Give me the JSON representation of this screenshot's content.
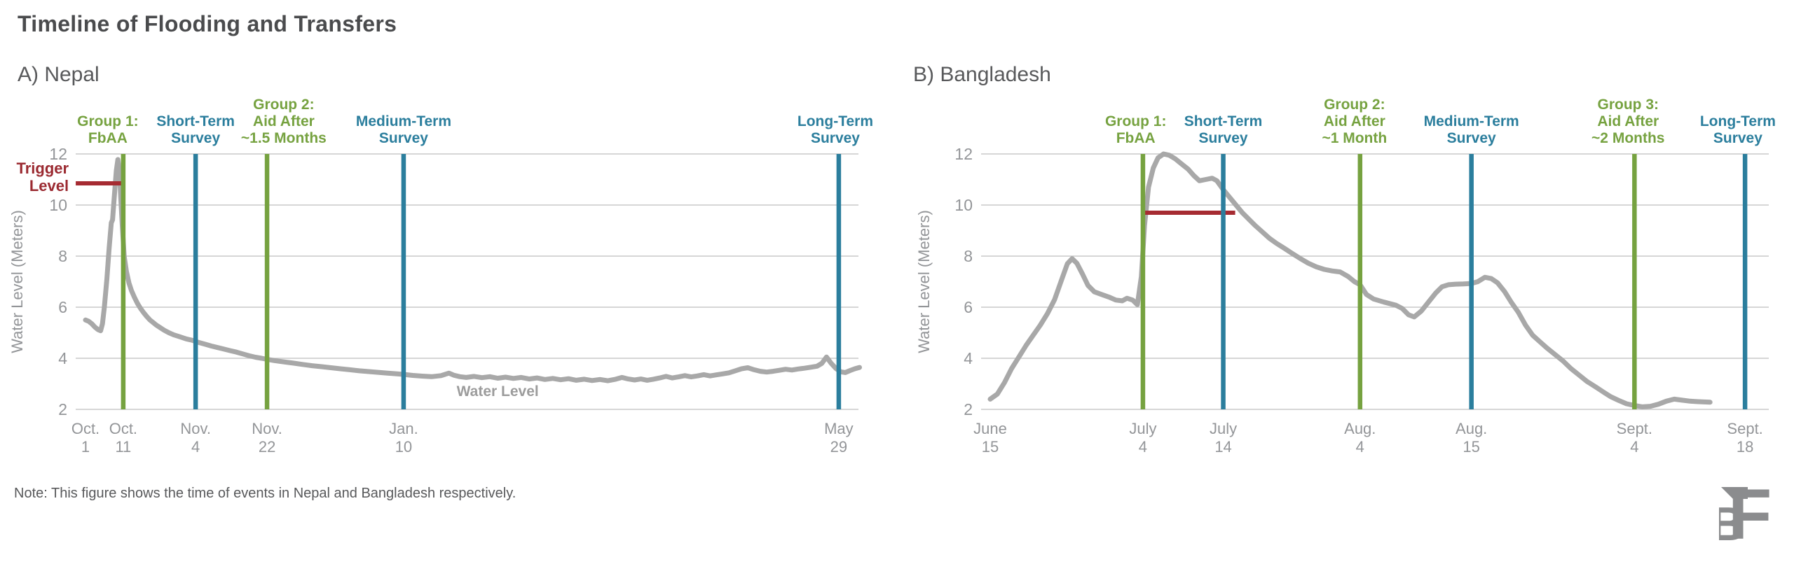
{
  "page": {
    "title": "Timeline of Flooding and Transfers",
    "note": "Note: This figure shows the time of events in Nepal and Bangladesh respectively.",
    "logo_text": "BF"
  },
  "colors": {
    "green": "#76a240",
    "teal": "#2b7e9d",
    "red": "#a62b32",
    "red_text": "#9b2a31",
    "water": "#a8a8a8",
    "grid": "#c9c9c9",
    "tick_text": "#939598",
    "title_text": "#4a4b4d",
    "panel_text": "#58595b",
    "water_label": "#9c9c9c",
    "logo": "#8b8c8e"
  },
  "chart_data": [
    {
      "type": "line",
      "title": "A) Nepal",
      "ylabel": "Water Level (Meters)",
      "ylim": [
        2,
        12
      ],
      "yticks": [
        2,
        4,
        6,
        8,
        10,
        12
      ],
      "grid": true,
      "x_unit": "days since Oct. 1",
      "xlim": [
        -3.1,
        245.7
      ],
      "xticks": [
        {
          "day": 0,
          "lines": [
            "Oct.",
            "1"
          ]
        },
        {
          "day": 12,
          "lines": [
            "Oct.",
            "11"
          ]
        },
        {
          "day": 35,
          "lines": [
            "Nov.",
            "4"
          ]
        },
        {
          "day": 57.7,
          "lines": [
            "Nov.",
            "22"
          ]
        },
        {
          "day": 101.1,
          "lines": [
            "Jan.",
            "10"
          ]
        },
        {
          "day": 239.4,
          "lines": [
            "May",
            "29"
          ]
        }
      ],
      "events": [
        {
          "day": 12,
          "center_day": 7.1,
          "color": "green",
          "lines": [
            "Group 1:",
            "FbAA"
          ]
        },
        {
          "day": 35,
          "center_day": 35,
          "color": "teal",
          "lines": [
            "Short-Term",
            "Survey"
          ]
        },
        {
          "day": 57.7,
          "center_day": 63,
          "color": "green",
          "lines": [
            "Group 2:",
            "Aid After",
            "~1.5 Months"
          ]
        },
        {
          "day": 101.1,
          "center_day": 101.1,
          "color": "teal",
          "lines": [
            "Medium-Term",
            "Survey"
          ]
        },
        {
          "day": 239.4,
          "center_day": 238.3,
          "color": "teal",
          "lines": [
            "Long-Term",
            "Survey"
          ]
        }
      ],
      "trigger": {
        "value": 10.85,
        "from_day": -3.1,
        "to_day": 12,
        "label_lines": [
          "Trigger",
          "Level"
        ]
      },
      "series_label": {
        "text": "Water Level",
        "day": 131,
        "value": 2.52
      },
      "water": [
        [
          0,
          5.5
        ],
        [
          1,
          5.45
        ],
        [
          2,
          5.35
        ],
        [
          3,
          5.22
        ],
        [
          4,
          5.12
        ],
        [
          4.8,
          5.08
        ],
        [
          5.4,
          5.35
        ],
        [
          6,
          6.0
        ],
        [
          6.8,
          7.1
        ],
        [
          7.5,
          8.3
        ],
        [
          8.2,
          9.3
        ],
        [
          8.6,
          9.42
        ],
        [
          9.2,
          10.4
        ],
        [
          9.8,
          11.35
        ],
        [
          10.3,
          11.78
        ],
        [
          10.8,
          11.3
        ],
        [
          11.2,
          10.3
        ],
        [
          11.7,
          9.2
        ],
        [
          12.3,
          8.0
        ],
        [
          13,
          7.4
        ],
        [
          13.8,
          6.95
        ],
        [
          14.6,
          6.65
        ],
        [
          15.5,
          6.4
        ],
        [
          16.5,
          6.15
        ],
        [
          17.5,
          5.95
        ],
        [
          18.5,
          5.78
        ],
        [
          19.5,
          5.63
        ],
        [
          20.5,
          5.5
        ],
        [
          21.5,
          5.4
        ],
        [
          22.5,
          5.3
        ],
        [
          23.5,
          5.22
        ],
        [
          25,
          5.1
        ],
        [
          26.5,
          5.0
        ],
        [
          28,
          4.92
        ],
        [
          30,
          4.84
        ],
        [
          32,
          4.76
        ],
        [
          34,
          4.7
        ],
        [
          36,
          4.62
        ],
        [
          38,
          4.55
        ],
        [
          40,
          4.48
        ],
        [
          42,
          4.42
        ],
        [
          44,
          4.36
        ],
        [
          46,
          4.3
        ],
        [
          48,
          4.24
        ],
        [
          50,
          4.17
        ],
        [
          52,
          4.1
        ],
        [
          54,
          4.04
        ],
        [
          56,
          4.0
        ],
        [
          57.7,
          3.96
        ],
        [
          60,
          3.91
        ],
        [
          63,
          3.86
        ],
        [
          66,
          3.81
        ],
        [
          69,
          3.76
        ],
        [
          72,
          3.71
        ],
        [
          75,
          3.67
        ],
        [
          78,
          3.63
        ],
        [
          81,
          3.59
        ],
        [
          84,
          3.55
        ],
        [
          87,
          3.51
        ],
        [
          90,
          3.48
        ],
        [
          93,
          3.45
        ],
        [
          96,
          3.42
        ],
        [
          99,
          3.39
        ],
        [
          101,
          3.37
        ],
        [
          104,
          3.33
        ],
        [
          107,
          3.3
        ],
        [
          110,
          3.28
        ],
        [
          113,
          3.32
        ],
        [
          115.5,
          3.42
        ],
        [
          117,
          3.34
        ],
        [
          119,
          3.28
        ],
        [
          121,
          3.25
        ],
        [
          123.5,
          3.29
        ],
        [
          126,
          3.24
        ],
        [
          128.5,
          3.28
        ],
        [
          131,
          3.22
        ],
        [
          133.5,
          3.26
        ],
        [
          136,
          3.21
        ],
        [
          138.5,
          3.25
        ],
        [
          141,
          3.19
        ],
        [
          143.5,
          3.23
        ],
        [
          146,
          3.17
        ],
        [
          148.5,
          3.21
        ],
        [
          151,
          3.16
        ],
        [
          153.5,
          3.2
        ],
        [
          156,
          3.14
        ],
        [
          158.5,
          3.18
        ],
        [
          161,
          3.13
        ],
        [
          163.5,
          3.17
        ],
        [
          166,
          3.12
        ],
        [
          168.5,
          3.18
        ],
        [
          170.5,
          3.25
        ],
        [
          172.5,
          3.19
        ],
        [
          174.5,
          3.15
        ],
        [
          176.5,
          3.19
        ],
        [
          178.5,
          3.14
        ],
        [
          180.5,
          3.18
        ],
        [
          182.5,
          3.23
        ],
        [
          184.5,
          3.29
        ],
        [
          186.5,
          3.23
        ],
        [
          188.5,
          3.27
        ],
        [
          190.5,
          3.32
        ],
        [
          192.5,
          3.27
        ],
        [
          194.5,
          3.31
        ],
        [
          196.5,
          3.36
        ],
        [
          198.5,
          3.31
        ],
        [
          200.5,
          3.35
        ],
        [
          202.5,
          3.39
        ],
        [
          204.5,
          3.43
        ],
        [
          206.5,
          3.51
        ],
        [
          208.5,
          3.59
        ],
        [
          210.5,
          3.63
        ],
        [
          212.5,
          3.55
        ],
        [
          214.5,
          3.49
        ],
        [
          216.5,
          3.46
        ],
        [
          218.5,
          3.49
        ],
        [
          220.5,
          3.53
        ],
        [
          222.5,
          3.57
        ],
        [
          224.5,
          3.54
        ],
        [
          226.5,
          3.58
        ],
        [
          228.5,
          3.61
        ],
        [
          230.5,
          3.65
        ],
        [
          232.5,
          3.69
        ],
        [
          234,
          3.8
        ],
        [
          235.5,
          4.05
        ],
        [
          237,
          3.8
        ],
        [
          238.5,
          3.6
        ],
        [
          240,
          3.47
        ],
        [
          241.5,
          3.44
        ],
        [
          243,
          3.52
        ],
        [
          244.5,
          3.59
        ],
        [
          246,
          3.64
        ]
      ]
    },
    {
      "type": "line",
      "title": "B) Bangladesh",
      "ylabel": "Water Level (Meters)",
      "ylim": [
        2,
        12
      ],
      "yticks": [
        2,
        4,
        6,
        8,
        10,
        12
      ],
      "grid": true,
      "x_unit": "days since June 15",
      "xlim": [
        -1.1,
        97.9
      ],
      "xticks": [
        {
          "day": 0,
          "lines": [
            "June",
            "15"
          ]
        },
        {
          "day": 19.2,
          "lines": [
            "July",
            "4"
          ]
        },
        {
          "day": 29.3,
          "lines": [
            "July",
            "14"
          ]
        },
        {
          "day": 46.5,
          "lines": [
            "Aug.",
            "4"
          ]
        },
        {
          "day": 60.5,
          "lines": [
            "Aug.",
            "15"
          ]
        },
        {
          "day": 81,
          "lines": [
            "Sept.",
            "4"
          ]
        },
        {
          "day": 94.9,
          "lines": [
            "Sept.",
            "18"
          ]
        }
      ],
      "events": [
        {
          "day": 19.2,
          "center_day": 18.3,
          "color": "green",
          "lines": [
            "Group 1:",
            "FbAA"
          ]
        },
        {
          "day": 29.3,
          "center_day": 29.3,
          "color": "teal",
          "lines": [
            "Short-Term",
            "Survey"
          ]
        },
        {
          "day": 46.5,
          "center_day": 45.8,
          "color": "green",
          "lines": [
            "Group 2:",
            "Aid After",
            "~1 Month"
          ]
        },
        {
          "day": 60.5,
          "center_day": 60.5,
          "color": "teal",
          "lines": [
            "Medium-Term",
            "Survey"
          ]
        },
        {
          "day": 81,
          "center_day": 80.2,
          "color": "green",
          "lines": [
            "Group 3:",
            "Aid After",
            "~2 Months"
          ]
        },
        {
          "day": 94.9,
          "center_day": 94.0,
          "color": "teal",
          "lines": [
            "Long-Term",
            "Survey"
          ]
        }
      ],
      "trigger": {
        "value": 9.7,
        "from_day": 19.2,
        "to_day": 30.8
      },
      "series_label": null,
      "water": [
        [
          0,
          2.4
        ],
        [
          0.9,
          2.6
        ],
        [
          1.8,
          3.05
        ],
        [
          2.7,
          3.6
        ],
        [
          3.6,
          4.05
        ],
        [
          4.5,
          4.5
        ],
        [
          5.4,
          4.9
        ],
        [
          6.3,
          5.3
        ],
        [
          7.2,
          5.75
        ],
        [
          8.1,
          6.3
        ],
        [
          9,
          7.1
        ],
        [
          9.7,
          7.7
        ],
        [
          10.3,
          7.9
        ],
        [
          10.9,
          7.72
        ],
        [
          11.6,
          7.3
        ],
        [
          12.3,
          6.85
        ],
        [
          13.1,
          6.6
        ],
        [
          14,
          6.5
        ],
        [
          14.9,
          6.4
        ],
        [
          15.8,
          6.28
        ],
        [
          16.6,
          6.25
        ],
        [
          17.2,
          6.35
        ],
        [
          17.9,
          6.28
        ],
        [
          18.5,
          6.1
        ],
        [
          19,
          7.2
        ],
        [
          19.4,
          9.2
        ],
        [
          19.9,
          10.7
        ],
        [
          20.5,
          11.45
        ],
        [
          21.1,
          11.85
        ],
        [
          21.8,
          12.0
        ],
        [
          22.5,
          11.95
        ],
        [
          23.3,
          11.8
        ],
        [
          24.1,
          11.6
        ],
        [
          24.9,
          11.4
        ],
        [
          25.6,
          11.15
        ],
        [
          26.3,
          10.95
        ],
        [
          27.1,
          11.0
        ],
        [
          27.9,
          11.05
        ],
        [
          28.5,
          10.95
        ],
        [
          29.3,
          10.6
        ],
        [
          30.1,
          10.3
        ],
        [
          30.9,
          10.0
        ],
        [
          31.7,
          9.7
        ],
        [
          32.5,
          9.45
        ],
        [
          33.3,
          9.2
        ],
        [
          34.2,
          8.95
        ],
        [
          35.1,
          8.7
        ],
        [
          36,
          8.5
        ],
        [
          37,
          8.3
        ],
        [
          38,
          8.1
        ],
        [
          39,
          7.9
        ],
        [
          40,
          7.72
        ],
        [
          41,
          7.58
        ],
        [
          42,
          7.48
        ],
        [
          43,
          7.42
        ],
        [
          44,
          7.38
        ],
        [
          45,
          7.2
        ],
        [
          45.8,
          7.0
        ],
        [
          46.5,
          6.88
        ],
        [
          47.3,
          6.5
        ],
        [
          48.2,
          6.32
        ],
        [
          49.5,
          6.2
        ],
        [
          51,
          6.08
        ],
        [
          51.8,
          5.95
        ],
        [
          52.6,
          5.7
        ],
        [
          53.3,
          5.62
        ],
        [
          54.2,
          5.85
        ],
        [
          55.1,
          6.2
        ],
        [
          56,
          6.55
        ],
        [
          56.8,
          6.8
        ],
        [
          57.6,
          6.88
        ],
        [
          58.5,
          6.9
        ],
        [
          59.5,
          6.91
        ],
        [
          60.5,
          6.93
        ],
        [
          61.3,
          7.0
        ],
        [
          62.2,
          7.17
        ],
        [
          63,
          7.12
        ],
        [
          63.8,
          6.95
        ],
        [
          64.7,
          6.6
        ],
        [
          65.5,
          6.2
        ],
        [
          66.4,
          5.8
        ],
        [
          67.3,
          5.3
        ],
        [
          68.2,
          4.9
        ],
        [
          69.1,
          4.65
        ],
        [
          70,
          4.4
        ],
        [
          71,
          4.15
        ],
        [
          72,
          3.9
        ],
        [
          73,
          3.6
        ],
        [
          74,
          3.35
        ],
        [
          75,
          3.1
        ],
        [
          76,
          2.9
        ],
        [
          77,
          2.7
        ],
        [
          78,
          2.5
        ],
        [
          79,
          2.35
        ],
        [
          80,
          2.22
        ],
        [
          81,
          2.15
        ],
        [
          82,
          2.1
        ],
        [
          83,
          2.12
        ],
        [
          84,
          2.2
        ],
        [
          85,
          2.32
        ],
        [
          86,
          2.4
        ],
        [
          87,
          2.36
        ],
        [
          88,
          2.32
        ],
        [
          89,
          2.3
        ],
        [
          90.5,
          2.28
        ]
      ]
    }
  ]
}
